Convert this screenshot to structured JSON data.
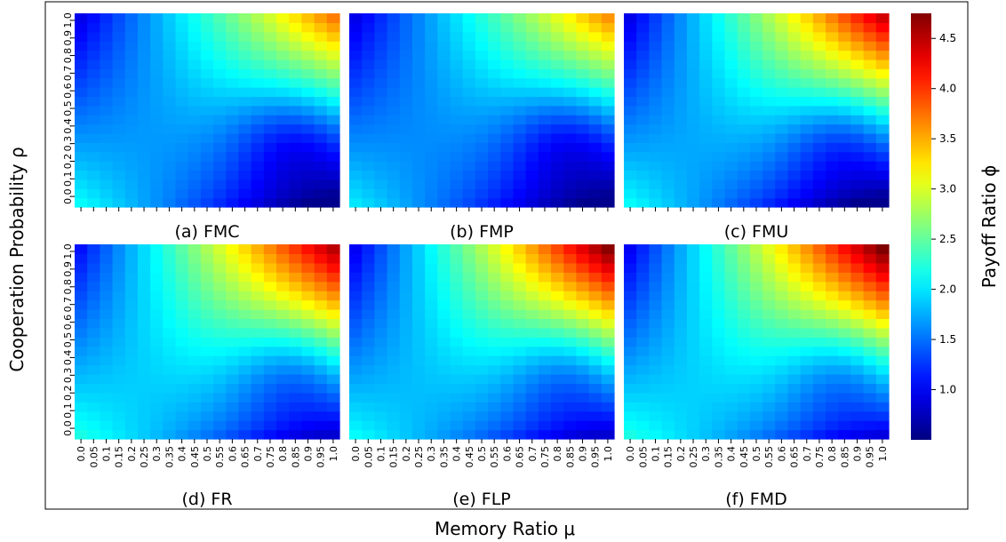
{
  "figure": {
    "ylabel": "Cooperation Probability ρ",
    "xlabel": "Memory Ratio μ",
    "colorbar_label": "Payoff Ratio ϕ"
  },
  "axes": {
    "x_ticks": [
      "0.0",
      "0.05",
      "0.1",
      "0.15",
      "0.2",
      "0.25",
      "0.3",
      "0.35",
      "0.4",
      "0.45",
      "0.5",
      "0.55",
      "0.6",
      "0.65",
      "0.7",
      "0.75",
      "0.8",
      "0.85",
      "0.9",
      "0.95",
      "1.0"
    ],
    "y_ticks": [
      "0.0",
      "0.1",
      "0.2",
      "0.3",
      "0.4",
      "0.5",
      "0.6",
      "0.7",
      "0.8",
      "0.9",
      "1.0"
    ]
  },
  "colorbar": {
    "vmin": 0.5,
    "vmax": 4.75,
    "ticks": [
      "1.0",
      "1.5",
      "2.0",
      "2.5",
      "3.0",
      "3.5",
      "4.0",
      "4.5"
    ],
    "colormap": "jet"
  },
  "chart_data": [
    {
      "type": "heatmap",
      "title": "(a) FMC",
      "grid": {
        "cols": 21,
        "rows": 21
      },
      "x": "memory ratio 0.0–1.0 (step 0.05)",
      "y": "cooperation probability 0.0–1.0 (step 0.05)",
      "corner_values": {
        "low_mu_low_rho": 2.1,
        "low_mu_high_rho": 0.95,
        "high_mu_low_rho": 0.55,
        "high_mu_high_rho": 3.6
      },
      "peak": 3.7,
      "min": 0.55
    },
    {
      "type": "heatmap",
      "title": "(b) FMP",
      "grid": {
        "cols": 21,
        "rows": 21
      },
      "corner_values": {
        "low_mu_low_rho": 2.0,
        "low_mu_high_rho": 0.95,
        "high_mu_low_rho": 0.55,
        "high_mu_high_rho": 3.5
      },
      "peak": 3.6,
      "min": 0.55
    },
    {
      "type": "heatmap",
      "title": "(c) FMU",
      "grid": {
        "cols": 21,
        "rows": 21
      },
      "corner_values": {
        "low_mu_low_rho": 2.1,
        "low_mu_high_rho": 0.95,
        "high_mu_low_rho": 0.55,
        "high_mu_high_rho": 4.3
      },
      "peak": 4.4,
      "min": 0.55
    },
    {
      "type": "heatmap",
      "title": "(d) FR",
      "grid": {
        "cols": 21,
        "rows": 21
      },
      "corner_values": {
        "low_mu_low_rho": 2.2,
        "low_mu_high_rho": 1.1,
        "high_mu_low_rho": 0.9,
        "high_mu_high_rho": 4.5
      },
      "peak": 4.5,
      "min": 0.85
    },
    {
      "type": "heatmap",
      "title": "(e) FLP",
      "grid": {
        "cols": 21,
        "rows": 21
      },
      "corner_values": {
        "low_mu_low_rho": 2.1,
        "low_mu_high_rho": 1.0,
        "high_mu_low_rho": 0.9,
        "high_mu_high_rho": 4.6
      },
      "peak": 4.7,
      "min": 0.85
    },
    {
      "type": "heatmap",
      "title": "(f) FMD",
      "grid": {
        "cols": 21,
        "rows": 21
      },
      "corner_values": {
        "low_mu_low_rho": 2.2,
        "low_mu_high_rho": 1.0,
        "high_mu_low_rho": 1.0,
        "high_mu_high_rho": 4.7
      },
      "peak": 4.75,
      "min": 0.9
    }
  ]
}
